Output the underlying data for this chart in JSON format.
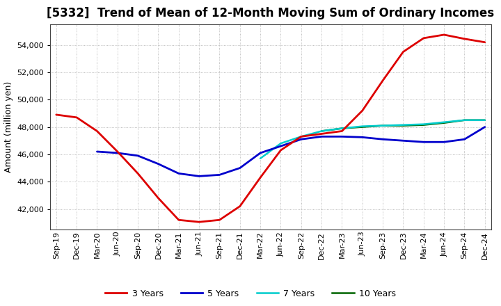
{
  "title": "[5332]  Trend of Mean of 12-Month Moving Sum of Ordinary Incomes",
  "ylabel": "Amount (million yen)",
  "x_labels": [
    "Sep-19",
    "Dec-19",
    "Mar-20",
    "Jun-20",
    "Sep-20",
    "Dec-20",
    "Mar-21",
    "Jun-21",
    "Sep-21",
    "Dec-21",
    "Mar-22",
    "Jun-22",
    "Sep-22",
    "Dec-22",
    "Mar-23",
    "Jun-23",
    "Sep-23",
    "Dec-23",
    "Mar-24",
    "Jun-24",
    "Sep-24",
    "Dec-24"
  ],
  "series": {
    "3 Years": {
      "color": "#DD0000",
      "data_x": [
        0,
        1,
        2,
        3,
        4,
        5,
        6,
        7,
        8,
        9,
        10,
        11,
        12,
        13,
        14,
        15,
        16,
        17,
        18,
        19,
        20,
        21
      ],
      "data_y": [
        48900,
        48700,
        47700,
        46200,
        44600,
        42800,
        41200,
        41050,
        41200,
        42200,
        44300,
        46300,
        47300,
        47500,
        47700,
        49200,
        51400,
        53500,
        54500,
        54750,
        54450,
        54200
      ]
    },
    "5 Years": {
      "color": "#0000CC",
      "data_x": [
        2,
        3,
        4,
        5,
        6,
        7,
        8,
        9,
        10,
        11,
        12,
        13,
        14,
        15,
        16,
        17,
        18,
        19,
        20,
        21
      ],
      "data_y": [
        46200,
        46100,
        45900,
        45300,
        44600,
        44400,
        44500,
        45000,
        46100,
        46600,
        47100,
        47300,
        47300,
        47250,
        47100,
        47000,
        46900,
        46900,
        47100,
        48000
      ]
    },
    "7 Years": {
      "color": "#00CCCC",
      "data_x": [
        10,
        11,
        12,
        13,
        14,
        15,
        16,
        17,
        18,
        19,
        20,
        21
      ],
      "data_y": [
        45700,
        46800,
        47300,
        47700,
        47900,
        48050,
        48100,
        48150,
        48200,
        48350,
        48500,
        48500
      ]
    },
    "10 Years": {
      "color": "#006400",
      "data_x": [
        13,
        14,
        15,
        16,
        17,
        18,
        19,
        20,
        21
      ],
      "data_y": [
        47700,
        47900,
        48000,
        48100,
        48100,
        48150,
        48300,
        48500,
        48500
      ]
    }
  },
  "ylim": [
    40500,
    55500
  ],
  "yticks": [
    42000,
    44000,
    46000,
    48000,
    50000,
    52000,
    54000
  ],
  "background_color": "#FFFFFF",
  "grid_color": "#AAAAAA",
  "title_fontsize": 12,
  "axis_label_fontsize": 9,
  "tick_fontsize": 8
}
